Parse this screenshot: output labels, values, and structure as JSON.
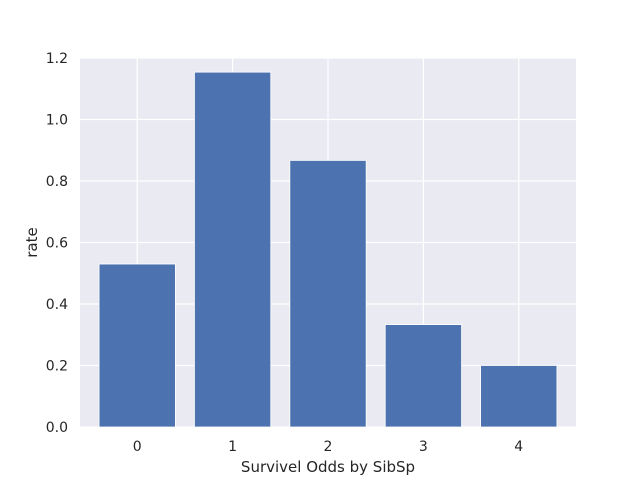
{
  "chart_data": {
    "type": "bar",
    "categories": [
      "0",
      "1",
      "2",
      "3",
      "4"
    ],
    "values": [
      0.53,
      1.154,
      0.867,
      0.333,
      0.2
    ],
    "title": "",
    "xlabel": "Survivel Odds by SibSp",
    "ylabel": "rate",
    "ylim": [
      0,
      1.2
    ],
    "yticks": [
      "0.0",
      "0.2",
      "0.4",
      "0.6",
      "0.8",
      "1.0",
      "1.2"
    ],
    "grid": true,
    "colors": {
      "bar": "#4c72b0",
      "plot_background": "#eaeaf2",
      "grid": "#ffffff"
    }
  }
}
